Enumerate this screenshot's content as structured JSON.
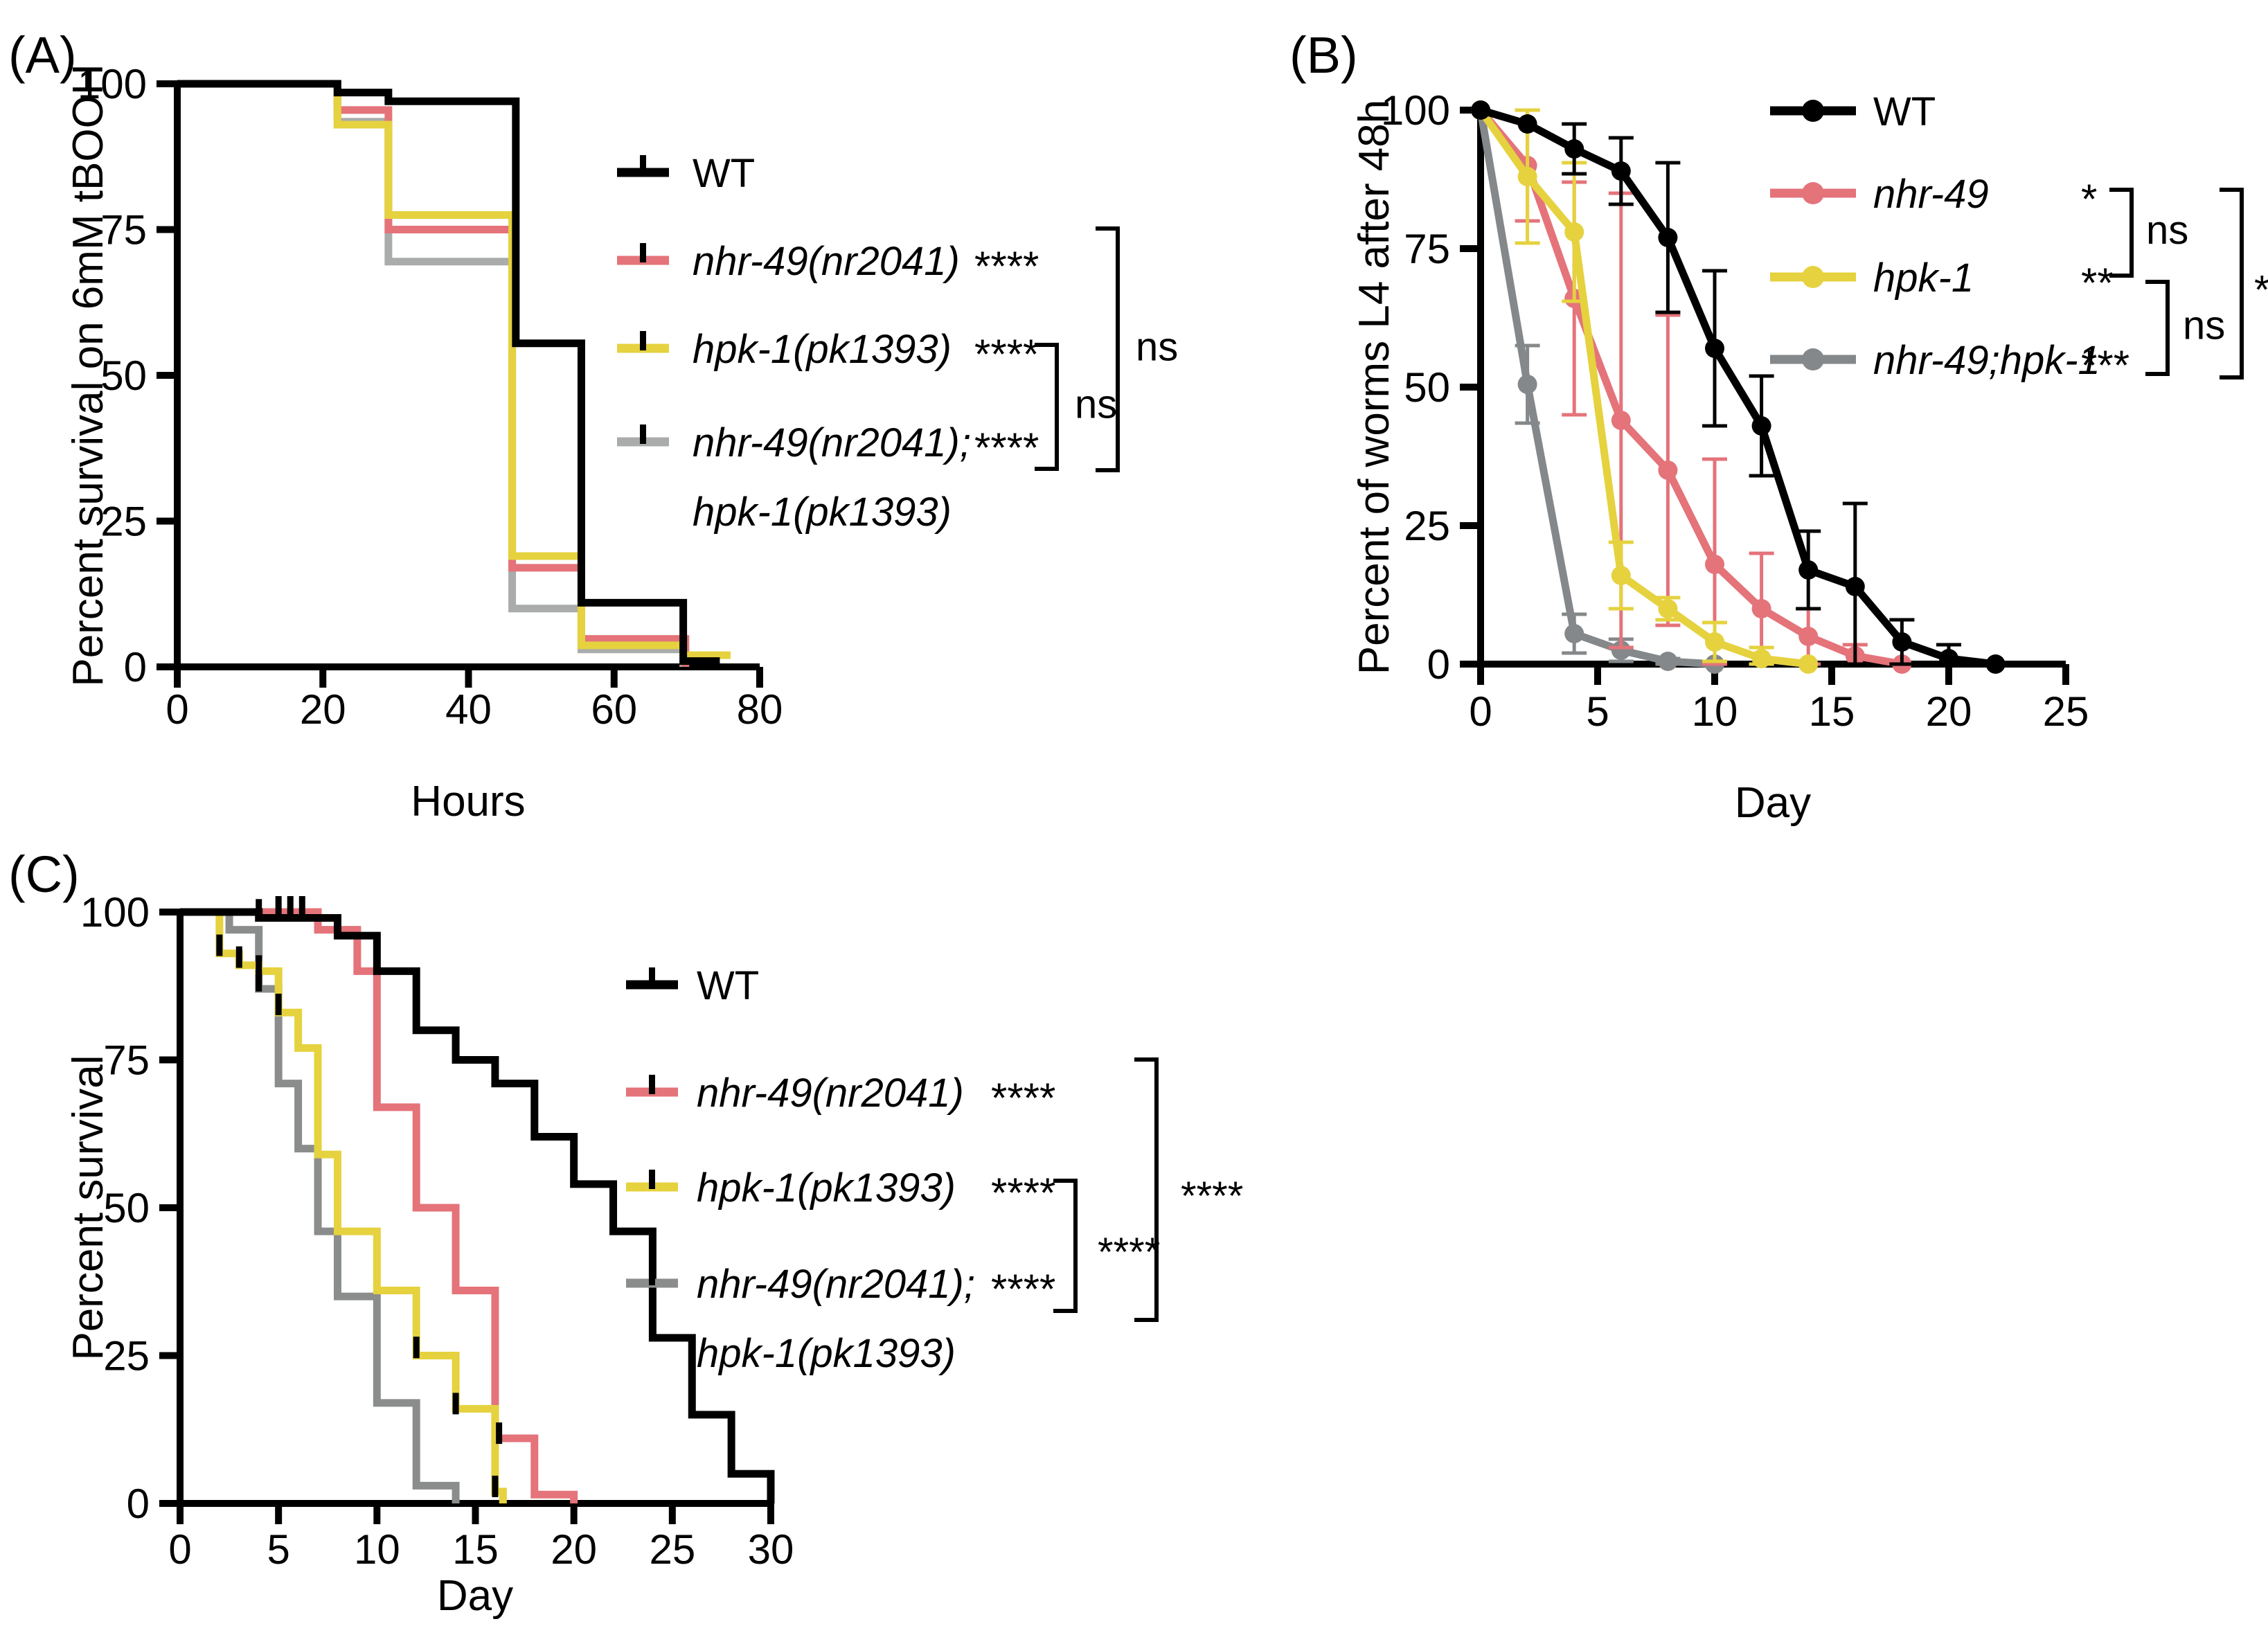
{
  "figure": {
    "background": "#ffffff",
    "description": "Three-panel survival figure for C. elegans genotypes",
    "colors": {
      "wt": "#000000",
      "nhr49": "#E4737A",
      "hpk1": "#E5D23E",
      "double_mutant_panelA": "#A9ACAB",
      "double_mutant_panelB": "#85888A",
      "double_mutant_panelC": "#8A8D8C"
    }
  },
  "chart_data": [
    {
      "id": "A",
      "panel_label": "(A)",
      "type": "line",
      "subtype": "step_survival",
      "xlabel": "Hours",
      "ylabel": "Percent survival on 6mM tBOOH",
      "xlim": [
        0,
        80
      ],
      "xticks": [
        0,
        20,
        40,
        60,
        80
      ],
      "ylim": [
        0,
        100
      ],
      "yticks": [
        0,
        25,
        50,
        75,
        100
      ],
      "grid": false,
      "legend_position": "right-inside",
      "series": [
        {
          "name": "WT",
          "italic": false,
          "color": "#000000",
          "sig": "",
          "steps": [
            [
              0,
              100
            ],
            [
              22,
              98.5
            ],
            [
              29,
              97
            ],
            [
              46.5,
              55.5
            ],
            [
              55.5,
              11
            ],
            [
              69.5,
              1
            ],
            [
              74,
              0
            ]
          ]
        },
        {
          "name": "nhr-49(nr2041)",
          "italic": true,
          "color": "#E4737A",
          "sig": "****",
          "steps": [
            [
              0,
              100
            ],
            [
              22,
              95.5
            ],
            [
              29,
              75
            ],
            [
              46,
              17
            ],
            [
              55.5,
              4.8
            ],
            [
              69.8,
              0
            ]
          ]
        },
        {
          "name": "hpk-1(pk1393)",
          "italic": true,
          "color": "#E5D23E",
          "sig": "****",
          "steps": [
            [
              0,
              100
            ],
            [
              22,
              93
            ],
            [
              29,
              77.5
            ],
            [
              46,
              19
            ],
            [
              55.5,
              3.7
            ],
            [
              69.5,
              2
            ],
            [
              76,
              2
            ]
          ]
        },
        {
          "name": "nhr-49(nr2041);",
          "name_line2": "hpk-1(pk1393)",
          "italic": true,
          "color": "#A9ACAB",
          "sig": "****",
          "steps": [
            [
              0,
              100
            ],
            [
              22,
              93.5
            ],
            [
              29,
              69.5
            ],
            [
              46,
              10
            ],
            [
              55.5,
              3
            ],
            [
              69.5,
              0
            ]
          ]
        }
      ],
      "significance_brackets": [
        {
          "rows": [
            2,
            3
          ],
          "label": "ns"
        },
        {
          "rows": [
            1,
            3
          ],
          "label": "ns"
        }
      ]
    },
    {
      "id": "B",
      "panel_label": "(B)",
      "type": "line",
      "subtype": "markers_errorbars",
      "xlabel": "Day",
      "ylabel": "Percent of worms L4 after 48h",
      "xlim": [
        0,
        25
      ],
      "xticks": [
        0,
        5,
        10,
        15,
        20,
        25
      ],
      "ylim": [
        0,
        100
      ],
      "yticks": [
        0,
        25,
        50,
        75,
        100
      ],
      "grid": false,
      "legend_position": "right-inside",
      "series": [
        {
          "name": "WT",
          "italic": false,
          "color": "#000000",
          "sig": "",
          "x": [
            0,
            2,
            4,
            6,
            8,
            10,
            12,
            14,
            16,
            18,
            20,
            22
          ],
          "y": [
            100,
            97.5,
            93,
            89,
            77,
            57,
            43,
            17,
            14,
            4,
            1,
            0
          ],
          "err": [
            0,
            0,
            4.5,
            6,
            13.5,
            14,
            9,
            7,
            15,
            4,
            2.5,
            0
          ]
        },
        {
          "name": "nhr-49",
          "italic": true,
          "color": "#E4737A",
          "sig": "*",
          "x": [
            0,
            2,
            4,
            6,
            8,
            10,
            12,
            14,
            16,
            18
          ],
          "y": [
            100,
            90,
            66,
            44,
            35,
            18,
            10,
            5,
            1.5,
            0
          ],
          "err": [
            0,
            10,
            21,
            41,
            28,
            19,
            10,
            5,
            2,
            0
          ]
        },
        {
          "name": "hpk-1",
          "italic": true,
          "color": "#E5D23E",
          "sig": "**",
          "x": [
            0,
            2,
            4,
            6,
            8,
            10,
            12,
            14
          ],
          "y": [
            100,
            88,
            78,
            16,
            10,
            4,
            1,
            0
          ],
          "err": [
            0,
            12,
            12.5,
            6,
            2,
            3.5,
            2,
            0
          ]
        },
        {
          "name": "nhr-49;hpk-1",
          "italic": true,
          "color": "#85888A",
          "sig": "***",
          "x": [
            0,
            2,
            4,
            6,
            8,
            10
          ],
          "y": [
            100,
            50.5,
            5.5,
            2.5,
            0.5,
            0
          ],
          "err": [
            0,
            7,
            3.5,
            2,
            0.5,
            0
          ]
        }
      ],
      "significance_brackets": [
        {
          "rows": [
            1,
            2
          ],
          "label": "ns"
        },
        {
          "rows": [
            2,
            3
          ],
          "label": "ns"
        },
        {
          "rows": [
            1,
            3
          ],
          "label": "*"
        }
      ]
    },
    {
      "id": "C",
      "panel_label": "(C)",
      "type": "line",
      "subtype": "step_survival",
      "xlabel": "Day",
      "ylabel": "Percent survival",
      "xlim": [
        0,
        30
      ],
      "xticks": [
        0,
        5,
        10,
        15,
        20,
        25,
        30
      ],
      "ylim": [
        0,
        100
      ],
      "yticks": [
        0,
        25,
        50,
        75,
        100
      ],
      "grid": false,
      "legend_position": "right-inside",
      "series": [
        {
          "name": "WT",
          "italic": false,
          "color": "#000000",
          "sig": "",
          "steps": [
            [
              0,
              100
            ],
            [
              4,
              99
            ],
            [
              8,
              96
            ],
            [
              10,
              90
            ],
            [
              12,
              80
            ],
            [
              14,
              75
            ],
            [
              16,
              71
            ],
            [
              18,
              62
            ],
            [
              20,
              54
            ],
            [
              22,
              46
            ],
            [
              24,
              28
            ],
            [
              26,
              15
            ],
            [
              28,
              5
            ],
            [
              30,
              0
            ]
          ],
          "censor_ticks": [
            [
              4,
              99.5
            ]
          ]
        },
        {
          "name": "nhr-49(nr2041)",
          "italic": true,
          "color": "#E4737A",
          "sig": "****",
          "steps": [
            [
              0,
              100
            ],
            [
              7,
              97
            ],
            [
              9,
              90
            ],
            [
              10,
              67
            ],
            [
              12,
              50
            ],
            [
              14,
              36
            ],
            [
              16,
              11
            ],
            [
              18,
              1.5
            ],
            [
              20,
              0
            ]
          ],
          "censor_ticks": [
            [
              5,
              100
            ],
            [
              5.6,
              100
            ],
            [
              6.2,
              100
            ],
            [
              16.2,
              11
            ]
          ]
        },
        {
          "name": "hpk-1(pk1393)",
          "italic": true,
          "color": "#E5D23E",
          "sig": "****",
          "steps": [
            [
              0,
              100
            ],
            [
              2,
              93
            ],
            [
              3,
              91
            ],
            [
              4,
              90
            ],
            [
              5,
              83
            ],
            [
              6,
              77
            ],
            [
              7,
              59
            ],
            [
              8,
              46
            ],
            [
              10,
              36
            ],
            [
              12,
              25
            ],
            [
              14,
              16
            ],
            [
              16,
              2
            ],
            [
              16.4,
              0
            ]
          ],
          "censor_ticks": [
            [
              2,
              93.5
            ],
            [
              3,
              91.5
            ],
            [
              4,
              90
            ],
            [
              5,
              83.5
            ],
            [
              12,
              25.5
            ],
            [
              14,
              16
            ],
            [
              16,
              2
            ]
          ]
        },
        {
          "name": "nhr-49(nr2041);",
          "name_line2": "hpk-1(pk1393)",
          "italic": true,
          "color": "#8A8D8C",
          "sig": "****",
          "steps": [
            [
              0,
              100
            ],
            [
              2.5,
              97
            ],
            [
              4,
              87
            ],
            [
              5,
              71
            ],
            [
              6,
              60
            ],
            [
              7,
              46
            ],
            [
              8,
              35
            ],
            [
              10,
              17
            ],
            [
              12,
              3
            ],
            [
              14,
              0
            ]
          ],
          "censor_ticks": [
            [
              4,
              87.5
            ]
          ]
        }
      ],
      "significance_brackets": [
        {
          "rows": [
            2,
            3
          ],
          "label": "****"
        },
        {
          "rows": [
            1,
            3
          ],
          "label": "****"
        }
      ]
    }
  ]
}
